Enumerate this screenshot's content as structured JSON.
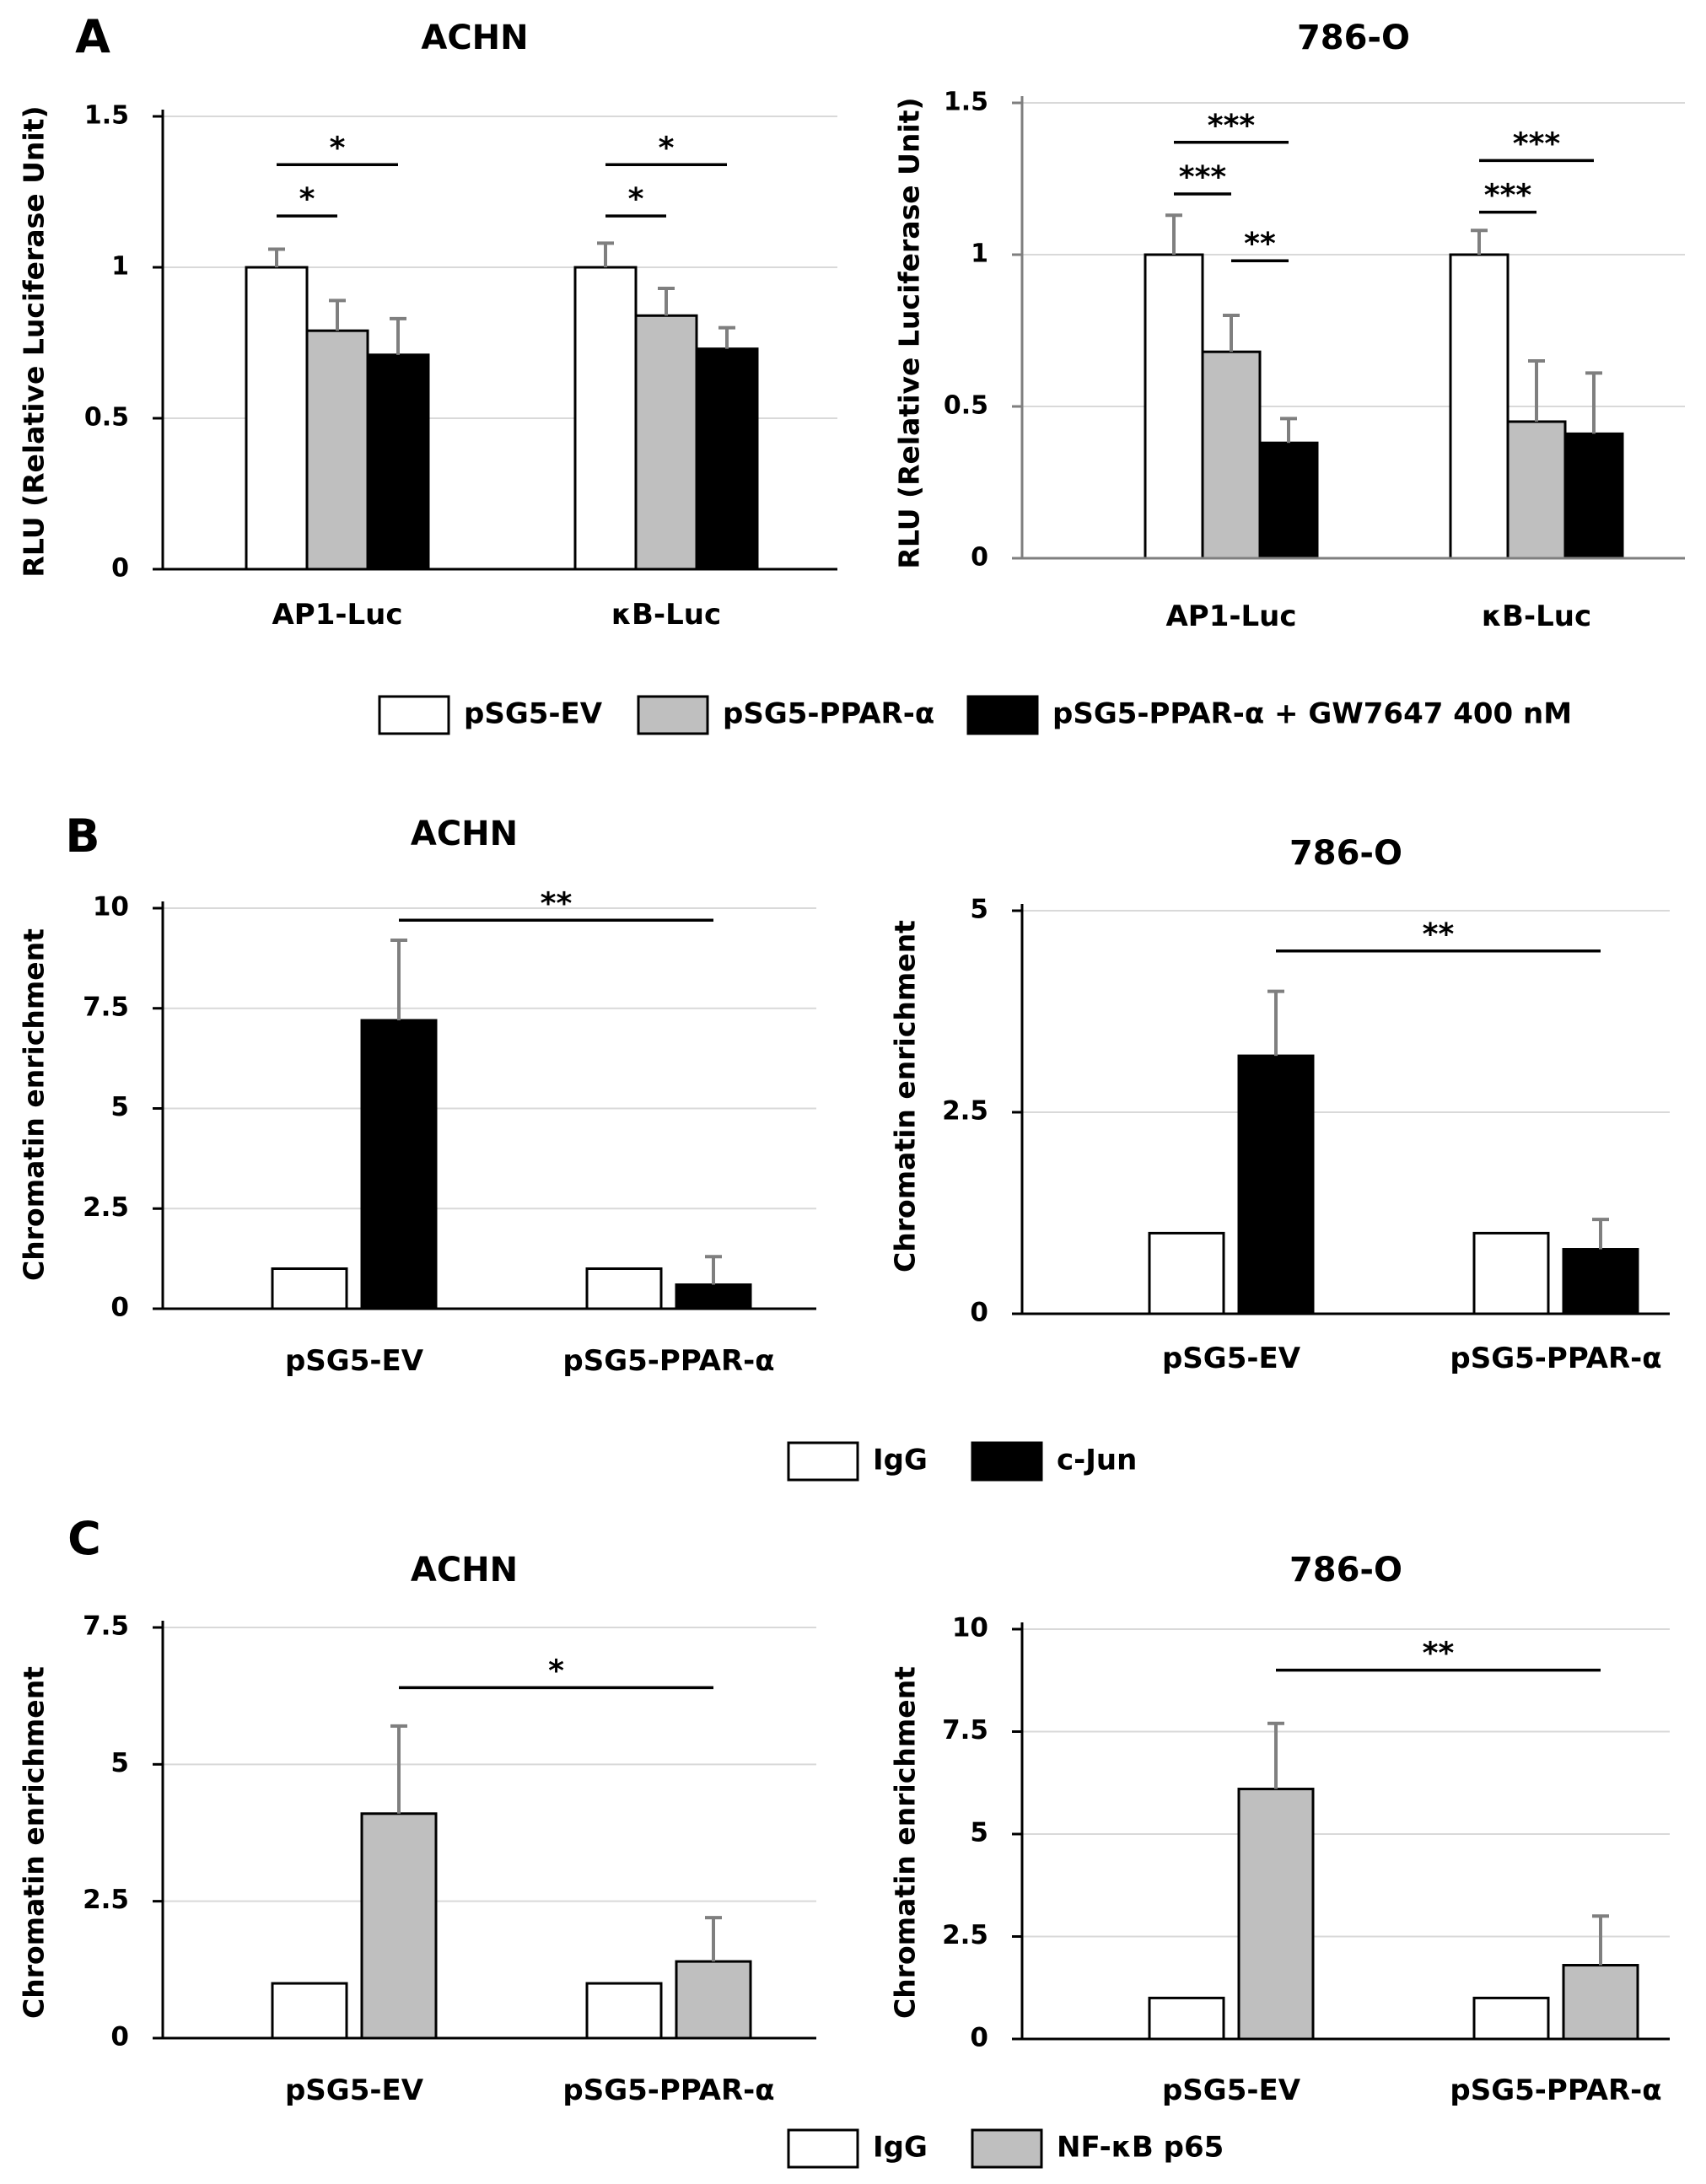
{
  "panel_letters": [
    "A",
    "B",
    "C"
  ],
  "chart_data": [
    {
      "id": "A1",
      "panel": "A",
      "type": "bar",
      "title": "ACHN",
      "ylabel": "RLU (Relative Luciferase Unit)",
      "xlabel": "",
      "ylim": [
        0,
        1.5
      ],
      "yticks": [
        0,
        0.5,
        1,
        1.5
      ],
      "ytick_labels": [
        "0",
        "0.5",
        "1",
        "1.5"
      ],
      "grid": true,
      "categories": [
        "AP1-Luc",
        "κB-Luc"
      ],
      "series": [
        {
          "name": "pSG5-EV",
          "color": "#ffffff",
          "values": [
            1.0,
            1.0
          ],
          "errors": [
            0.06,
            0.08
          ]
        },
        {
          "name": "pSG5-PPAR-α",
          "color": "#bfbfbf",
          "values": [
            0.79,
            0.84
          ],
          "errors": [
            0.1,
            0.09
          ]
        },
        {
          "name": "pSG5-PPAR-α + GW7647 400 nM",
          "color": "#000000",
          "values": [
            0.71,
            0.73
          ],
          "errors": [
            0.12,
            0.07
          ]
        }
      ],
      "significance": [
        {
          "category": 0,
          "from": 0,
          "to": 1,
          "y": 1.17,
          "label": "*"
        },
        {
          "category": 0,
          "from": 0,
          "to": 2,
          "y": 1.34,
          "label": "*"
        },
        {
          "category": 1,
          "from": 0,
          "to": 1,
          "y": 1.17,
          "label": "*"
        },
        {
          "category": 1,
          "from": 0,
          "to": 2,
          "y": 1.34,
          "label": "*"
        }
      ]
    },
    {
      "id": "A2",
      "panel": "A",
      "type": "bar",
      "title": "786-O",
      "ylabel": "RLU (Relative Luciferase Unit)",
      "xlabel": "",
      "ylim": [
        0,
        1.5
      ],
      "yticks": [
        0,
        0.5,
        1,
        1.5
      ],
      "ytick_labels": [
        "0",
        "0.5",
        "1",
        "1.5"
      ],
      "grid": true,
      "categories": [
        "AP1-Luc",
        "κB-Luc"
      ],
      "series": [
        {
          "name": "pSG5-EV",
          "color": "#ffffff",
          "values": [
            1.0,
            1.0
          ],
          "errors": [
            0.13,
            0.08
          ]
        },
        {
          "name": "pSG5-PPAR-α",
          "color": "#bfbfbf",
          "values": [
            0.68,
            0.45
          ],
          "errors": [
            0.12,
            0.2
          ]
        },
        {
          "name": "pSG5-PPAR-α + GW7647 400 nM",
          "color": "#000000",
          "values": [
            0.38,
            0.41
          ],
          "errors": [
            0.08,
            0.2
          ]
        }
      ],
      "significance": [
        {
          "category": 0,
          "from": 0,
          "to": 1,
          "y": 1.2,
          "label": "***"
        },
        {
          "category": 0,
          "from": 0,
          "to": 2,
          "y": 1.37,
          "label": "***"
        },
        {
          "category": 0,
          "from": 1,
          "to": 2,
          "y": 0.98,
          "label": "**"
        },
        {
          "category": 1,
          "from": 0,
          "to": 1,
          "y": 1.14,
          "label": "***"
        },
        {
          "category": 1,
          "from": 0,
          "to": 2,
          "y": 1.31,
          "label": "***"
        }
      ]
    },
    {
      "id": "B1",
      "panel": "B",
      "type": "bar",
      "title": "ACHN",
      "ylabel": "Chromatin enrichment",
      "xlabel": "",
      "ylim": [
        0,
        10
      ],
      "yticks": [
        0,
        2.5,
        5,
        7.5,
        10
      ],
      "ytick_labels": [
        "0",
        "2.5",
        "5",
        "7.5",
        "10"
      ],
      "grid": true,
      "categories": [
        "pSG5-EV",
        "pSG5-PPAR-α"
      ],
      "series": [
        {
          "name": "IgG",
          "color": "#ffffff",
          "values": [
            1.0,
            1.0
          ],
          "errors": [
            0,
            0
          ]
        },
        {
          "name": "c-Jun",
          "color": "#000000",
          "values": [
            7.2,
            0.6
          ],
          "errors": [
            2.0,
            0.7
          ]
        }
      ],
      "significance": [
        {
          "from_category": 0,
          "from_series": 1,
          "to_category": 1,
          "to_series": 1,
          "y": 9.7,
          "label": "**"
        }
      ]
    },
    {
      "id": "B2",
      "panel": "B",
      "type": "bar",
      "title": "786-O",
      "ylabel": "Chromatin enrichment",
      "xlabel": "",
      "ylim": [
        0,
        5
      ],
      "yticks": [
        0,
        2.5,
        5
      ],
      "ytick_labels": [
        "0",
        "2.5",
        "5"
      ],
      "grid": true,
      "categories": [
        "pSG5-EV",
        "pSG5-PPAR-α"
      ],
      "series": [
        {
          "name": "IgG",
          "color": "#ffffff",
          "values": [
            1.0,
            1.0
          ],
          "errors": [
            0,
            0
          ]
        },
        {
          "name": "c-Jun",
          "color": "#000000",
          "values": [
            3.2,
            0.8
          ],
          "errors": [
            0.8,
            0.37
          ]
        }
      ],
      "significance": [
        {
          "from_category": 0,
          "from_series": 1,
          "to_category": 1,
          "to_series": 1,
          "y": 4.5,
          "label": "**"
        }
      ]
    },
    {
      "id": "C1",
      "panel": "C",
      "type": "bar",
      "title": "ACHN",
      "ylabel": "Chromatin enrichment",
      "xlabel": "",
      "ylim": [
        0,
        7.5
      ],
      "yticks": [
        0,
        2.5,
        5,
        7.5
      ],
      "ytick_labels": [
        "0",
        "2.5",
        "5",
        "7.5"
      ],
      "grid": true,
      "categories": [
        "pSG5-EV",
        "pSG5-PPAR-α"
      ],
      "series": [
        {
          "name": "IgG",
          "color": "#ffffff",
          "values": [
            1.0,
            1.0
          ],
          "errors": [
            0,
            0
          ]
        },
        {
          "name": "NF-κB p65",
          "color": "#bfbfbf",
          "values": [
            4.1,
            1.4
          ],
          "errors": [
            1.6,
            0.8
          ]
        }
      ],
      "significance": [
        {
          "from_category": 0,
          "from_series": 1,
          "to_category": 1,
          "to_series": 1,
          "y": 6.4,
          "label": "*"
        }
      ]
    },
    {
      "id": "C2",
      "panel": "C",
      "type": "bar",
      "title": "786-O",
      "ylabel": "Chromatin enrichment",
      "xlabel": "",
      "ylim": [
        0,
        10
      ],
      "yticks": [
        0,
        2.5,
        5,
        7.5,
        10
      ],
      "ytick_labels": [
        "0",
        "2.5",
        "5",
        "7.5",
        "10"
      ],
      "grid": true,
      "categories": [
        "pSG5-EV",
        "pSG5-PPAR-α"
      ],
      "series": [
        {
          "name": "IgG",
          "color": "#ffffff",
          "values": [
            1.0,
            1.0
          ],
          "errors": [
            0,
            0
          ]
        },
        {
          "name": "NF-κB p65",
          "color": "#bfbfbf",
          "values": [
            6.1,
            1.8
          ],
          "errors": [
            1.6,
            1.2
          ]
        }
      ],
      "significance": [
        {
          "from_category": 0,
          "from_series": 1,
          "to_category": 1,
          "to_series": 1,
          "y": 9.0,
          "label": "**"
        }
      ]
    }
  ],
  "legends": [
    {
      "id": "A",
      "items": [
        {
          "label": "pSG5-EV",
          "color": "#ffffff"
        },
        {
          "label": "pSG5-PPAR-α",
          "color": "#bfbfbf"
        },
        {
          "label": "pSG5-PPAR-α + GW7647 400 nM",
          "color": "#000000"
        }
      ]
    },
    {
      "id": "B",
      "items": [
        {
          "label": "IgG",
          "color": "#ffffff"
        },
        {
          "label": "c-Jun",
          "color": "#000000"
        }
      ]
    },
    {
      "id": "C",
      "items": [
        {
          "label": "IgG",
          "color": "#ffffff"
        },
        {
          "label": "NF-κB p65",
          "color": "#bfbfbf"
        }
      ]
    }
  ]
}
